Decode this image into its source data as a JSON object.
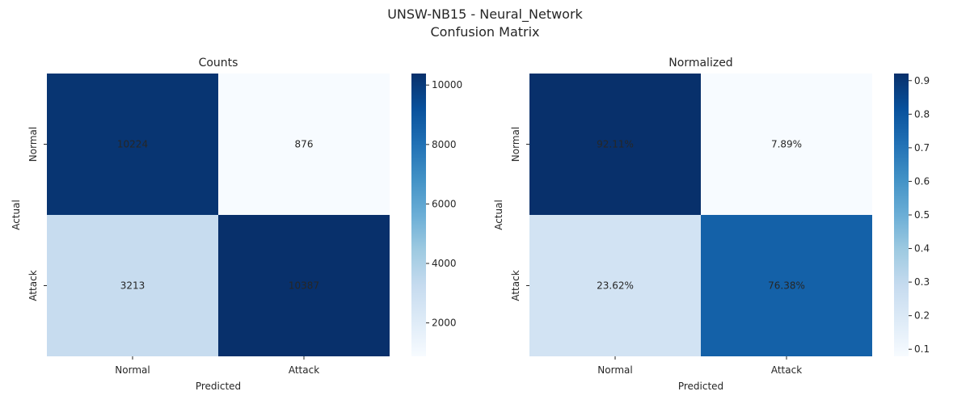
{
  "figure": {
    "title_line1": "UNSW-NB15 - Neural_Network",
    "title_line2": "Confusion Matrix"
  },
  "chart_data": [
    {
      "type": "heatmap",
      "title": "Counts",
      "xlabel": "Predicted",
      "ylabel": "Actual",
      "x_categories": [
        "Normal",
        "Attack"
      ],
      "y_categories": [
        "Normal",
        "Attack"
      ],
      "values": [
        [
          10224,
          876
        ],
        [
          3213,
          10387
        ]
      ],
      "cell_labels": [
        [
          "10224",
          "876"
        ],
        [
          "3213",
          "10387"
        ]
      ],
      "colormap": "Blues",
      "color_range": [
        876,
        10387
      ],
      "colorbar_ticks": [
        2000,
        4000,
        6000,
        8000,
        10000
      ]
    },
    {
      "type": "heatmap",
      "title": "Normalized",
      "xlabel": "Predicted",
      "ylabel": "Actual",
      "x_categories": [
        "Normal",
        "Attack"
      ],
      "y_categories": [
        "Normal",
        "Attack"
      ],
      "values": [
        [
          0.9211,
          0.0789
        ],
        [
          0.2362,
          0.7638
        ]
      ],
      "cell_labels": [
        [
          "92.11%",
          "7.89%"
        ],
        [
          "23.62%",
          "76.38%"
        ]
      ],
      "colormap": "Blues",
      "color_range": [
        0.0789,
        0.9211
      ],
      "colorbar_ticks": [
        0.1,
        0.2,
        0.3,
        0.4,
        0.5,
        0.6,
        0.7,
        0.8,
        0.9
      ]
    }
  ]
}
